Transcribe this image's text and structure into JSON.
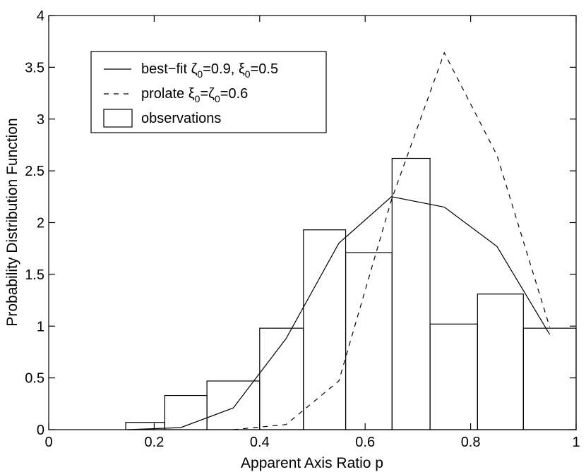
{
  "chart_data": {
    "type": "bar",
    "title": "",
    "xlabel": "Apparent Axis Ratio p",
    "ylabel": "Probability Distribution Function",
    "xlim": [
      0,
      1
    ],
    "ylim": [
      0,
      4
    ],
    "xticks": [
      0,
      0.2,
      0.4,
      0.6,
      0.8,
      1
    ],
    "xtick_labels": [
      "0",
      "0.2",
      "0.4",
      "0.6",
      "0.8",
      "1"
    ],
    "yticks": [
      0,
      0.5,
      1,
      1.5,
      2,
      2.5,
      3,
      3.5,
      4
    ],
    "ytick_labels": [
      "0",
      "0.5",
      "1",
      "1.5",
      "2",
      "2.5",
      "3",
      "3.5",
      "4"
    ],
    "grid": false,
    "legend_position": "top-left",
    "histogram": {
      "name": "observations",
      "bin_edges": [
        0.146,
        0.22,
        0.3,
        0.4,
        0.483,
        0.563,
        0.651,
        0.723,
        0.813,
        0.9,
        1.0
      ],
      "values": [
        0.07,
        0.33,
        0.47,
        0.98,
        1.93,
        1.71,
        2.62,
        1.02,
        1.31,
        0.98
      ]
    },
    "series": [
      {
        "name": "best-fit",
        "style": "solid",
        "x": [
          0.15,
          0.25,
          0.35,
          0.45,
          0.55,
          0.65,
          0.75,
          0.85,
          0.95
        ],
        "y": [
          0.0,
          0.02,
          0.21,
          0.88,
          1.8,
          2.25,
          2.15,
          1.77,
          0.92
        ]
      },
      {
        "name": "prolate",
        "style": "dashed",
        "x": [
          0.35,
          0.45,
          0.55,
          0.65,
          0.75,
          0.85,
          0.95
        ],
        "y": [
          0.0,
          0.05,
          0.47,
          2.22,
          3.64,
          2.65,
          0.99
        ]
      }
    ],
    "legend": [
      {
        "label": "best-fit ζ0=0.9, ξ0=0.5",
        "style": "solid"
      },
      {
        "label": "prolate ξ0=ζ0=0.6",
        "style": "dashed"
      },
      {
        "label": "observations",
        "style": "box"
      }
    ]
  },
  "legend_text": {
    "bestfit_prefix": "best−fit ζ",
    "bestfit_sub1": "0",
    "bestfit_mid": "=0.9, ξ",
    "bestfit_sub2": "0",
    "bestfit_suffix": "=0.5",
    "prolate_prefix": "prolate ξ",
    "prolate_sub1": "0",
    "prolate_mid": "=ζ",
    "prolate_sub2": "0",
    "prolate_suffix": "=0.6",
    "observations": "observations"
  }
}
